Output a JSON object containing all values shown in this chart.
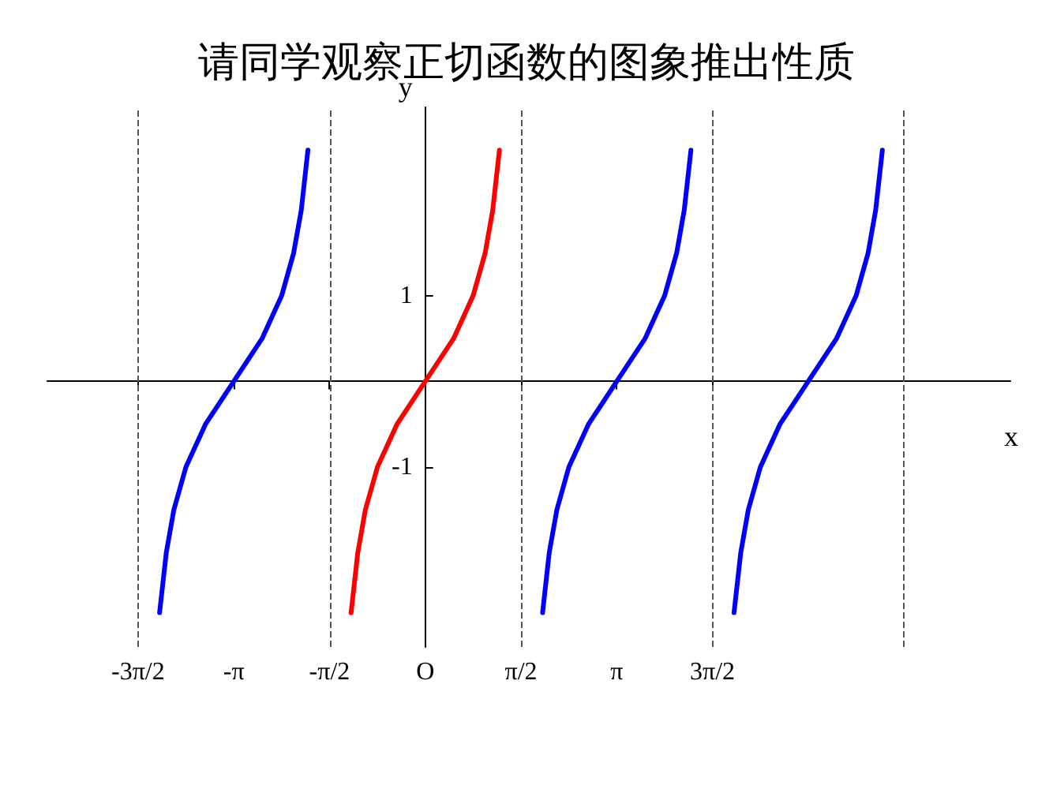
{
  "chart_data": {
    "type": "line",
    "title": "请同学观察正切函数的图象推出性质",
    "xlabel": "x",
    "ylabel": "y",
    "xlim": [
      -6.2,
      9.6
    ],
    "ylim": [
      -3.1,
      3.2
    ],
    "xticks": [
      {
        "value": -4.7124,
        "label": "-3π/2"
      },
      {
        "value": -3.1416,
        "label": "-π"
      },
      {
        "value": -1.5708,
        "label": "-π/2"
      },
      {
        "value": 0,
        "label": "O"
      },
      {
        "value": 1.5708,
        "label": "π/2"
      },
      {
        "value": 3.1416,
        "label": "π"
      },
      {
        "value": 4.7124,
        "label": "3π/2"
      }
    ],
    "yticks": [
      -1,
      1
    ],
    "grid": false,
    "marker": "none",
    "line_style": "solid",
    "series": [
      {
        "color": "#0000ff",
        "x": [
          -4.359,
          -4.249,
          -4.125,
          -3.927,
          -3.606,
          -3.1416,
          -2.678,
          -2.356,
          -2.159,
          -2.034,
          -1.925
        ],
        "values": [
          -2.7,
          -2,
          -1.5,
          -1,
          -0.5,
          0,
          0.5,
          1,
          1.5,
          2,
          2.7
        ]
      },
      {
        "color": "#ff0000",
        "x": [
          -1.217,
          -1.107,
          -0.983,
          -0.785,
          -0.464,
          0,
          0.464,
          0.785,
          0.983,
          1.107,
          1.217
        ],
        "values": [
          -2.7,
          -2,
          -1.5,
          -1,
          -0.5,
          0,
          0.5,
          1,
          1.5,
          2,
          2.7
        ]
      },
      {
        "color": "#0000ff",
        "x": [
          1.925,
          2.034,
          2.159,
          2.356,
          2.678,
          3.1416,
          3.606,
          3.927,
          4.125,
          4.249,
          4.359
        ],
        "values": [
          -2.7,
          -2,
          -1.5,
          -1,
          -0.5,
          0,
          0.5,
          1,
          1.5,
          2,
          2.7
        ]
      },
      {
        "color": "#0000ff",
        "x": [
          5.066,
          5.176,
          5.3,
          5.498,
          5.819,
          6.2832,
          6.747,
          7.069,
          7.266,
          7.39,
          7.5
        ],
        "values": [
          -2.7,
          -2,
          -1.5,
          -1,
          -0.5,
          0,
          0.5,
          1,
          1.5,
          2,
          2.7
        ]
      }
    ],
    "ref_lines": [
      {
        "axis": "x",
        "value": -4.7124,
        "line_style": "dashed",
        "color": "#555555"
      },
      {
        "axis": "x",
        "value": -1.5708,
        "line_style": "dashed",
        "color": "#555555"
      },
      {
        "axis": "x",
        "value": 1.5708,
        "line_style": "dashed",
        "color": "#555555"
      },
      {
        "axis": "x",
        "value": 4.7124,
        "line_style": "dashed",
        "color": "#555555"
      },
      {
        "axis": "x",
        "value": 7.854,
        "line_style": "dashed",
        "color": "#555555"
      }
    ]
  }
}
